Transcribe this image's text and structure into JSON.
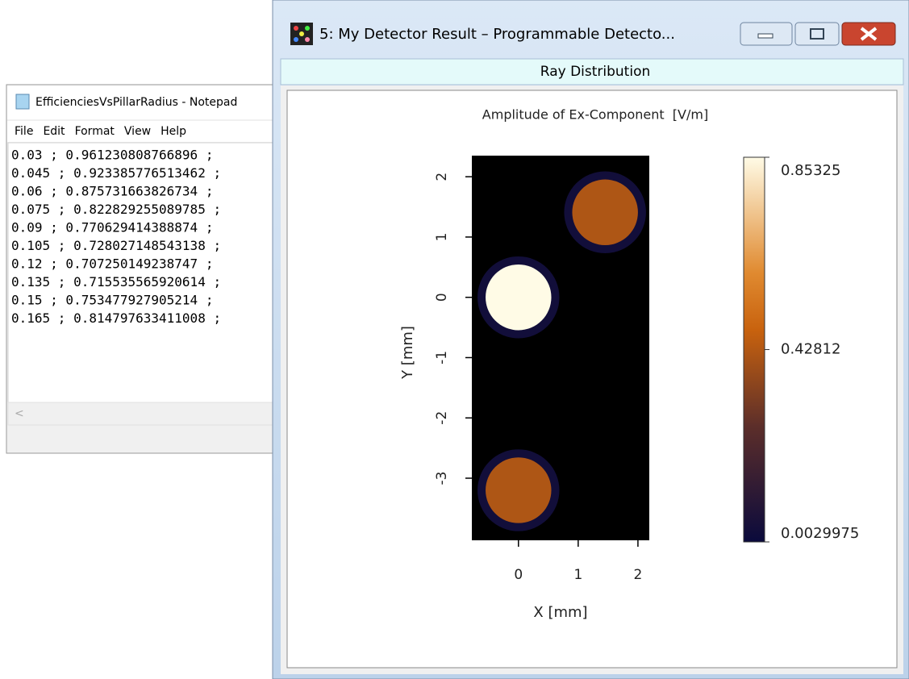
{
  "notepad": {
    "title": "EfficienciesVsPillarRadius - Notepad",
    "menu": [
      "File",
      "Edit",
      "Format",
      "View",
      "Help"
    ],
    "lines": [
      "0.03 ; 0.961230808766896 ;",
      "0.045 ; 0.923385776513462 ;",
      "0.06 ; 0.875731663826734 ;",
      "0.075 ; 0.822829255089785 ;",
      "0.09 ; 0.770629414388874 ;",
      "0.105 ; 0.728027148543138 ;",
      "0.12 ; 0.707250149238747 ;",
      "0.135 ; 0.715535565920614 ;",
      "0.15 ; 0.753477927905214 ;",
      "0.165 ; 0.814797633411008 ;"
    ]
  },
  "detector_window": {
    "title": "5: My Detector Result – Programmable Detecto...",
    "tab": "Ray Distribution",
    "chart_data": {
      "type": "heatmap",
      "title": "Amplitude of Ex-Component  [V/m]",
      "x_label": "X [mm]",
      "y_label": "Y [mm]",
      "xlim": [
        -0.78,
        2.19
      ],
      "ylim": [
        -4.03,
        2.35
      ],
      "xticks": [
        0,
        1,
        2
      ],
      "yticks": [
        -3,
        -2,
        -1,
        0,
        1,
        2
      ],
      "zlim": [
        0.0029975,
        0.85325
      ],
      "colorbar_ticks": [
        0.85325,
        0.42812,
        0.0029975
      ],
      "spots": [
        {
          "x": 1.45,
          "y": 1.41,
          "radius": 0.55,
          "value": 0.42
        },
        {
          "x": 0,
          "y": 0,
          "radius": 0.55,
          "value": 0.85325
        },
        {
          "x": 0,
          "y": -3.2,
          "radius": 0.55,
          "value": 0.42
        }
      ]
    }
  }
}
